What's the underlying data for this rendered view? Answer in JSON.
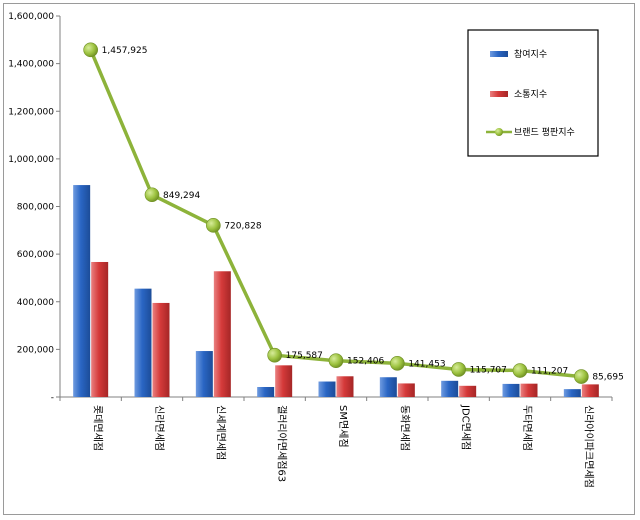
{
  "chart_data": {
    "type": "bar",
    "categories": [
      "롯데면세점",
      "신라면세점",
      "신세계면세점",
      "갤러리아면세점63",
      "SM면세점",
      "동화면세점",
      "JDC면세점",
      "두타면세점",
      "신라아이파크면세점"
    ],
    "series": [
      {
        "name": "참여지수",
        "type": "bar",
        "color": "#2a66c4",
        "values": [
          890000,
          455000,
          193000,
          42000,
          65000,
          83000,
          68000,
          55000,
          33000
        ]
      },
      {
        "name": "소통지수",
        "type": "bar",
        "color": "#d53a3a",
        "values": [
          567000,
          395000,
          528000,
          133000,
          87000,
          57000,
          47000,
          56000,
          53000
        ]
      },
      {
        "name": "브랜드 평판지수",
        "type": "line",
        "color": "#8db33a",
        "values": [
          1457925,
          849294,
          720828,
          175587,
          152406,
          141453,
          115707,
          111207,
          85695
        ]
      }
    ],
    "data_labels": [
      "1,457,925",
      "849,294",
      "720,828",
      "175,587",
      "152,406",
      "141,453",
      "115,707",
      "111,207",
      "85,695"
    ],
    "y_ticks": [
      "-",
      "200,000",
      "400,000",
      "600,000",
      "800,000",
      "1,000,000",
      "1,200,000",
      "1,400,000",
      "1,600,000"
    ],
    "ylim": [
      0,
      1600000
    ],
    "legend_position": "top-right",
    "grid": false
  }
}
